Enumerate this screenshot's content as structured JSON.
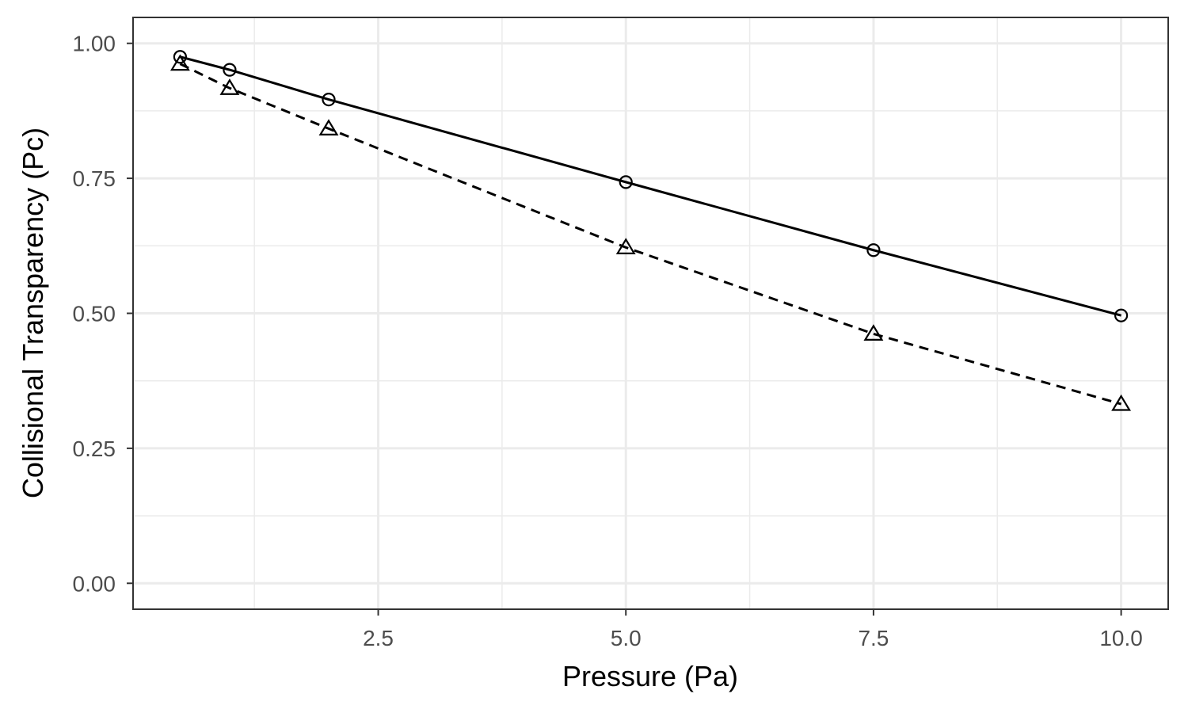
{
  "chart_data": {
    "type": "line",
    "title": "",
    "xlabel": "Pressure (Pa)",
    "ylabel": "Collisional Transparency (Pc)",
    "xlim": [
      0.025,
      10.475
    ],
    "ylim": [
      -0.048,
      1.048
    ],
    "x_ticks": [
      2.5,
      5.0,
      7.5,
      10.0
    ],
    "x_tick_labels": [
      "2.5",
      "5.0",
      "7.5",
      "10.0"
    ],
    "x_minor_ticks": [
      1.25,
      3.75,
      6.25,
      8.75
    ],
    "y_ticks": [
      0.0,
      0.25,
      0.5,
      0.75,
      1.0
    ],
    "y_tick_labels": [
      "0.00",
      "0.25",
      "0.50",
      "0.75",
      "1.00"
    ],
    "y_minor_ticks": [
      0.125,
      0.375,
      0.625,
      0.875
    ],
    "grid": true,
    "legend": "none",
    "colors": {
      "background": "#ffffff",
      "grid": "#ebebeb",
      "border": "#333333",
      "series": "#000000",
      "tick_label": "#4d4d4d"
    },
    "series": [
      {
        "line_style": "solid",
        "marker": "circle",
        "x": [
          0.5,
          1,
          2,
          5,
          7.5,
          10
        ],
        "y": [
          0.975,
          0.951,
          0.896,
          0.743,
          0.617,
          0.496
        ]
      },
      {
        "line_style": "dashed",
        "marker": "triangle",
        "x": [
          0.5,
          1,
          2,
          5,
          7.5,
          10
        ],
        "y": [
          0.962,
          0.917,
          0.842,
          0.622,
          0.462,
          0.332
        ]
      }
    ]
  }
}
